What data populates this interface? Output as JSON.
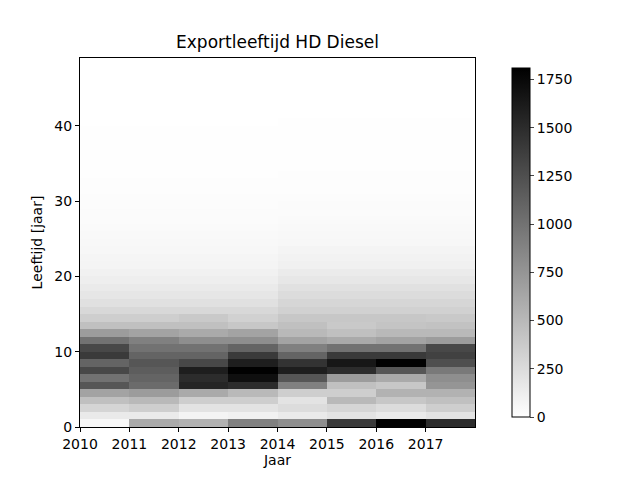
{
  "chart_data": {
    "type": "heatmap",
    "title": "Exportleeftijd HD Diesel",
    "x_label": "Jaar",
    "y_label": "Leeftijd [jaar]",
    "x_edges": [
      2010,
      2011,
      2012,
      2013,
      2014,
      2015,
      2016,
      2017,
      2018
    ],
    "y_edges": [
      0,
      1,
      2,
      3,
      4,
      5,
      6,
      7,
      8,
      9,
      10,
      11,
      12,
      13,
      14,
      15,
      16,
      17,
      18,
      19,
      20,
      21,
      22,
      23,
      24,
      25,
      26,
      27,
      28,
      29,
      30,
      31,
      32,
      33,
      34,
      35,
      36,
      37,
      38,
      39,
      40,
      41,
      42,
      43,
      44,
      45,
      46,
      47,
      48,
      49
    ],
    "xlim": [
      2010,
      2018
    ],
    "ylim": [
      0,
      49
    ],
    "xticks": [
      2010,
      2011,
      2012,
      2013,
      2014,
      2015,
      2016,
      2017
    ],
    "yticks": [
      0,
      10,
      20,
      30,
      40
    ],
    "cells_by_year": [
      [
        60,
        150,
        300,
        450,
        650,
        1200,
        1000,
        1300,
        1100,
        1400,
        1300,
        1000,
        700,
        450,
        350,
        280,
        220,
        180,
        150,
        120,
        100,
        80,
        70,
        60,
        50,
        40,
        35,
        30,
        25,
        20,
        18,
        15,
        12,
        10,
        8,
        7,
        6,
        5,
        4,
        4,
        3,
        3,
        2,
        2,
        2,
        1,
        1,
        1,
        1
      ],
      [
        600,
        150,
        350,
        500,
        700,
        1050,
        1100,
        1150,
        1200,
        1100,
        1000,
        900,
        650,
        450,
        350,
        280,
        220,
        180,
        150,
        120,
        100,
        80,
        70,
        60,
        50,
        40,
        35,
        30,
        25,
        20,
        18,
        15,
        12,
        10,
        8,
        7,
        6,
        5,
        4,
        4,
        3,
        3,
        2,
        2,
        2,
        1,
        1,
        1,
        1
      ],
      [
        550,
        80,
        200,
        350,
        600,
        1550,
        1500,
        1600,
        1300,
        1100,
        1000,
        800,
        600,
        450,
        380,
        280,
        220,
        180,
        150,
        120,
        100,
        80,
        70,
        60,
        50,
        40,
        35,
        30,
        25,
        20,
        18,
        15,
        12,
        10,
        8,
        7,
        6,
        5,
        4,
        4,
        3,
        3,
        2,
        2,
        2,
        1,
        1,
        1,
        1
      ],
      [
        900,
        100,
        200,
        350,
        500,
        1500,
        1700,
        1800,
        1600,
        1400,
        1100,
        800,
        650,
        400,
        330,
        280,
        220,
        180,
        150,
        120,
        100,
        80,
        70,
        60,
        50,
        40,
        35,
        30,
        25,
        20,
        18,
        15,
        12,
        10,
        8,
        7,
        6,
        5,
        4,
        4,
        3,
        3,
        2,
        2,
        2,
        1,
        1,
        1,
        1
      ],
      [
        800,
        150,
        250,
        200,
        350,
        900,
        1200,
        1600,
        1450,
        1100,
        900,
        650,
        500,
        450,
        400,
        330,
        290,
        250,
        210,
        170,
        140,
        110,
        90,
        75,
        60,
        50,
        42,
        35,
        30,
        25,
        20,
        17,
        14,
        12,
        10,
        8,
        7,
        6,
        5,
        4,
        4,
        3,
        3,
        2,
        2,
        2,
        1,
        1,
        1
      ],
      [
        1400,
        200,
        300,
        500,
        350,
        450,
        700,
        1500,
        1650,
        1400,
        1000,
        600,
        450,
        380,
        400,
        330,
        290,
        250,
        210,
        170,
        140,
        110,
        90,
        75,
        60,
        50,
        42,
        35,
        30,
        25,
        20,
        17,
        14,
        12,
        10,
        8,
        7,
        6,
        5,
        4,
        4,
        3,
        3,
        2,
        2,
        2,
        1,
        1,
        1
      ],
      [
        1800,
        150,
        250,
        400,
        550,
        400,
        600,
        1200,
        1800,
        1400,
        1000,
        650,
        500,
        420,
        400,
        330,
        290,
        250,
        210,
        170,
        140,
        110,
        90,
        75,
        60,
        50,
        42,
        35,
        30,
        25,
        20,
        17,
        14,
        12,
        10,
        8,
        7,
        6,
        5,
        4,
        4,
        3,
        3,
        2,
        2,
        2,
        1,
        1,
        1
      ],
      [
        1500,
        200,
        350,
        450,
        550,
        750,
        800,
        950,
        1250,
        1350,
        1300,
        700,
        500,
        430,
        380,
        330,
        290,
        250,
        210,
        170,
        140,
        110,
        90,
        75,
        60,
        50,
        42,
        35,
        30,
        25,
        20,
        17,
        14,
        12,
        10,
        8,
        7,
        6,
        5,
        4,
        4,
        3,
        3,
        2,
        2,
        2,
        1,
        1,
        1
      ]
    ],
    "colorbar_range": [
      0,
      1810
    ],
    "colorbar_ticks": [
      0,
      250,
      500,
      750,
      1000,
      1250,
      1500,
      1750
    ]
  }
}
